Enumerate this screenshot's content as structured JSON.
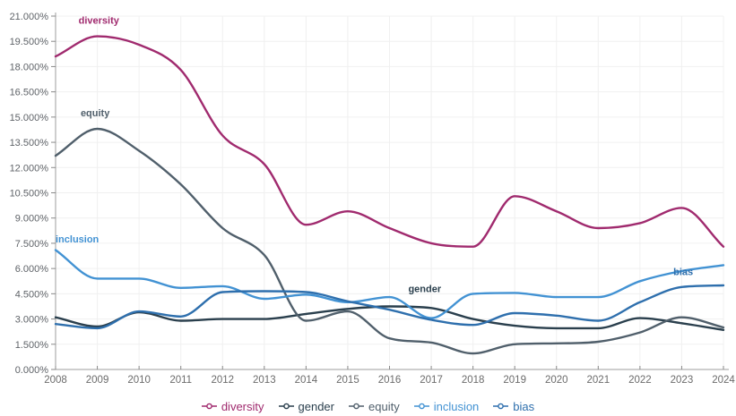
{
  "chart_data": {
    "type": "line",
    "x_range": [
      2008,
      2024
    ],
    "y_max": 21,
    "x_tick_labels": [
      "2008",
      "2009",
      "2010",
      "2011",
      "2012",
      "2013",
      "2014",
      "2015",
      "2016",
      "2017",
      "2018",
      "2019",
      "2020",
      "2021",
      "2022",
      "2023",
      "2024"
    ],
    "y_tick_labels": [
      "0.000%",
      "1.500%",
      "3.000%",
      "4.500%",
      "6.000%",
      "7.500%",
      "9.000%",
      "10.500%",
      "12.000%",
      "13.500%",
      "15.000%",
      "16.500%",
      "18.000%",
      "19.500%",
      "21.000%"
    ],
    "y_tick_values": [
      0,
      1.5,
      3,
      4.5,
      6,
      7.5,
      9,
      10.5,
      12,
      13.5,
      15,
      16.5,
      18,
      19.5,
      21
    ],
    "grid": "on",
    "series": [
      {
        "name": "diversity",
        "color": "#a02a6e",
        "values": [
          18.6,
          19.8,
          19.3,
          17.8,
          13.9,
          12.2,
          8.6,
          9.4,
          8.4,
          7.5,
          7.3,
          10.3,
          9.4,
          8.4,
          8.7,
          9.6,
          7.3
        ]
      },
      {
        "name": "gender",
        "color": "#2a3f4d",
        "values": [
          3.1,
          2.55,
          3.4,
          2.9,
          3.0,
          3.0,
          3.3,
          3.6,
          3.75,
          3.65,
          3.0,
          2.6,
          2.45,
          2.45,
          3.05,
          2.75,
          2.35
        ]
      },
      {
        "name": "equity",
        "color": "#505f6b",
        "values": [
          12.7,
          14.3,
          13.0,
          11.0,
          8.4,
          6.8,
          2.9,
          3.45,
          1.85,
          1.6,
          0.95,
          1.5,
          1.55,
          1.65,
          2.2,
          3.1,
          2.5
        ]
      },
      {
        "name": "inclusion",
        "color": "#4292d3",
        "values": [
          7.1,
          5.4,
          5.4,
          4.85,
          4.95,
          4.2,
          4.45,
          4.0,
          4.3,
          3.05,
          4.5,
          4.55,
          4.3,
          4.3,
          5.25,
          5.85,
          6.2
        ]
      },
      {
        "name": "bias",
        "color": "#2e6fad",
        "values": [
          2.7,
          2.45,
          3.45,
          3.15,
          4.6,
          4.65,
          4.6,
          4.05,
          3.55,
          2.95,
          2.65,
          3.35,
          3.2,
          2.9,
          4.0,
          4.9,
          5.0
        ]
      }
    ],
    "annotations": [
      {
        "text": "diversity",
        "color": "#a02a6e",
        "year": 2008.55,
        "value": 20.55
      },
      {
        "text": "equity",
        "color": "#505f6b",
        "year": 2008.6,
        "value": 15.05
      },
      {
        "text": "inclusion",
        "color": "#4292d3",
        "year": 2008.0,
        "value": 7.55
      },
      {
        "text": "gender",
        "color": "#2a3f4d",
        "year": 2016.45,
        "value": 4.6
      },
      {
        "text": "bias",
        "color": "#2e6fad",
        "year": 2022.8,
        "value": 5.6
      }
    ],
    "legend": [
      {
        "label": "diversity",
        "color": "#a02a6e"
      },
      {
        "label": "gender",
        "color": "#2a3f4d"
      },
      {
        "label": "equity",
        "color": "#505f6b"
      },
      {
        "label": "inclusion",
        "color": "#4292d3"
      },
      {
        "label": "bias",
        "color": "#2e6fad"
      }
    ],
    "style": {
      "grid_color": "#f0f0f0",
      "axis_color": "#9e9e9e",
      "tick_color": "#8a8a8a",
      "y_label_color": "#5f6368",
      "x_label_color": "#6b6b6b"
    }
  }
}
